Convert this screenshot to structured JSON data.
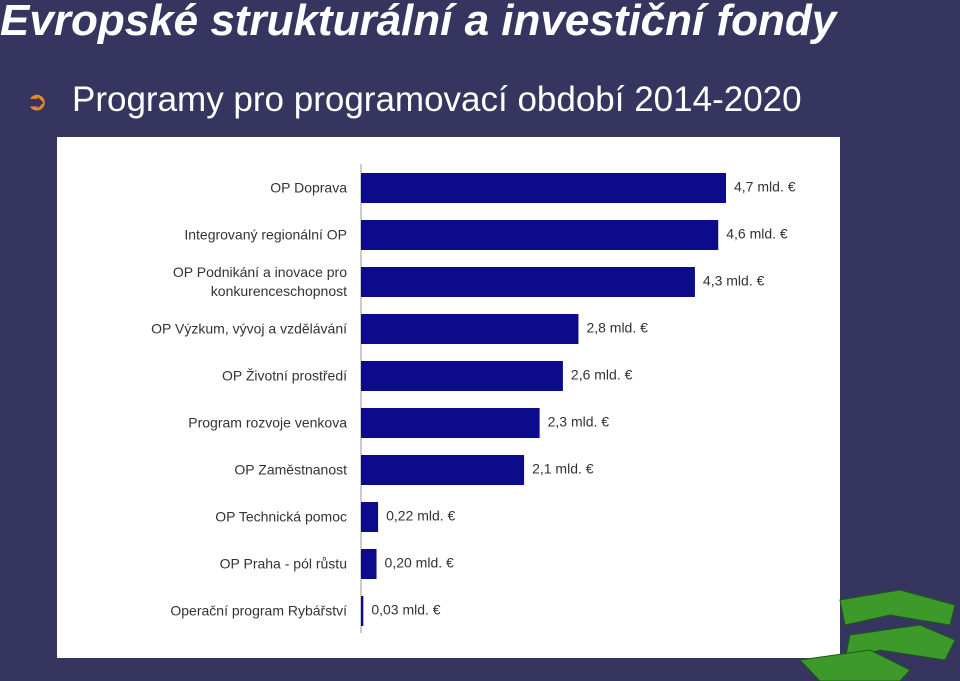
{
  "header": {
    "title": "Evropské strukturální a investiční fondy",
    "bullet": "Programy pro programovací období 2014-2020"
  },
  "chart_data": {
    "type": "bar",
    "orientation": "horizontal",
    "color": "#0b0b8c",
    "categories": [
      "OP Doprava",
      "Integrovaný regionální OP",
      "OP Podnikání a inovace pro konkurenceschopnost",
      "OP Výzkum, vývoj a vzdělávání",
      "OP Životní prostředí",
      "Program rozvoje venkova",
      "OP Zaměstnanost",
      "OP Technická pomoc",
      "OP Praha - pól růstu",
      "Operační program Rybářství"
    ],
    "values": [
      4.7,
      4.6,
      4.3,
      2.8,
      2.6,
      2.3,
      2.1,
      0.22,
      0.2,
      0.03
    ],
    "value_labels": [
      "4,7 mld. €",
      "4,6 mld. €",
      "4,3 mld. €",
      "2,8 mld. €",
      "2,6 mld. €",
      "2,3 mld. €",
      "2,1 mld. €",
      "0,22 mld. €",
      "0,20 mld. €",
      "0,03 mld. €"
    ]
  }
}
